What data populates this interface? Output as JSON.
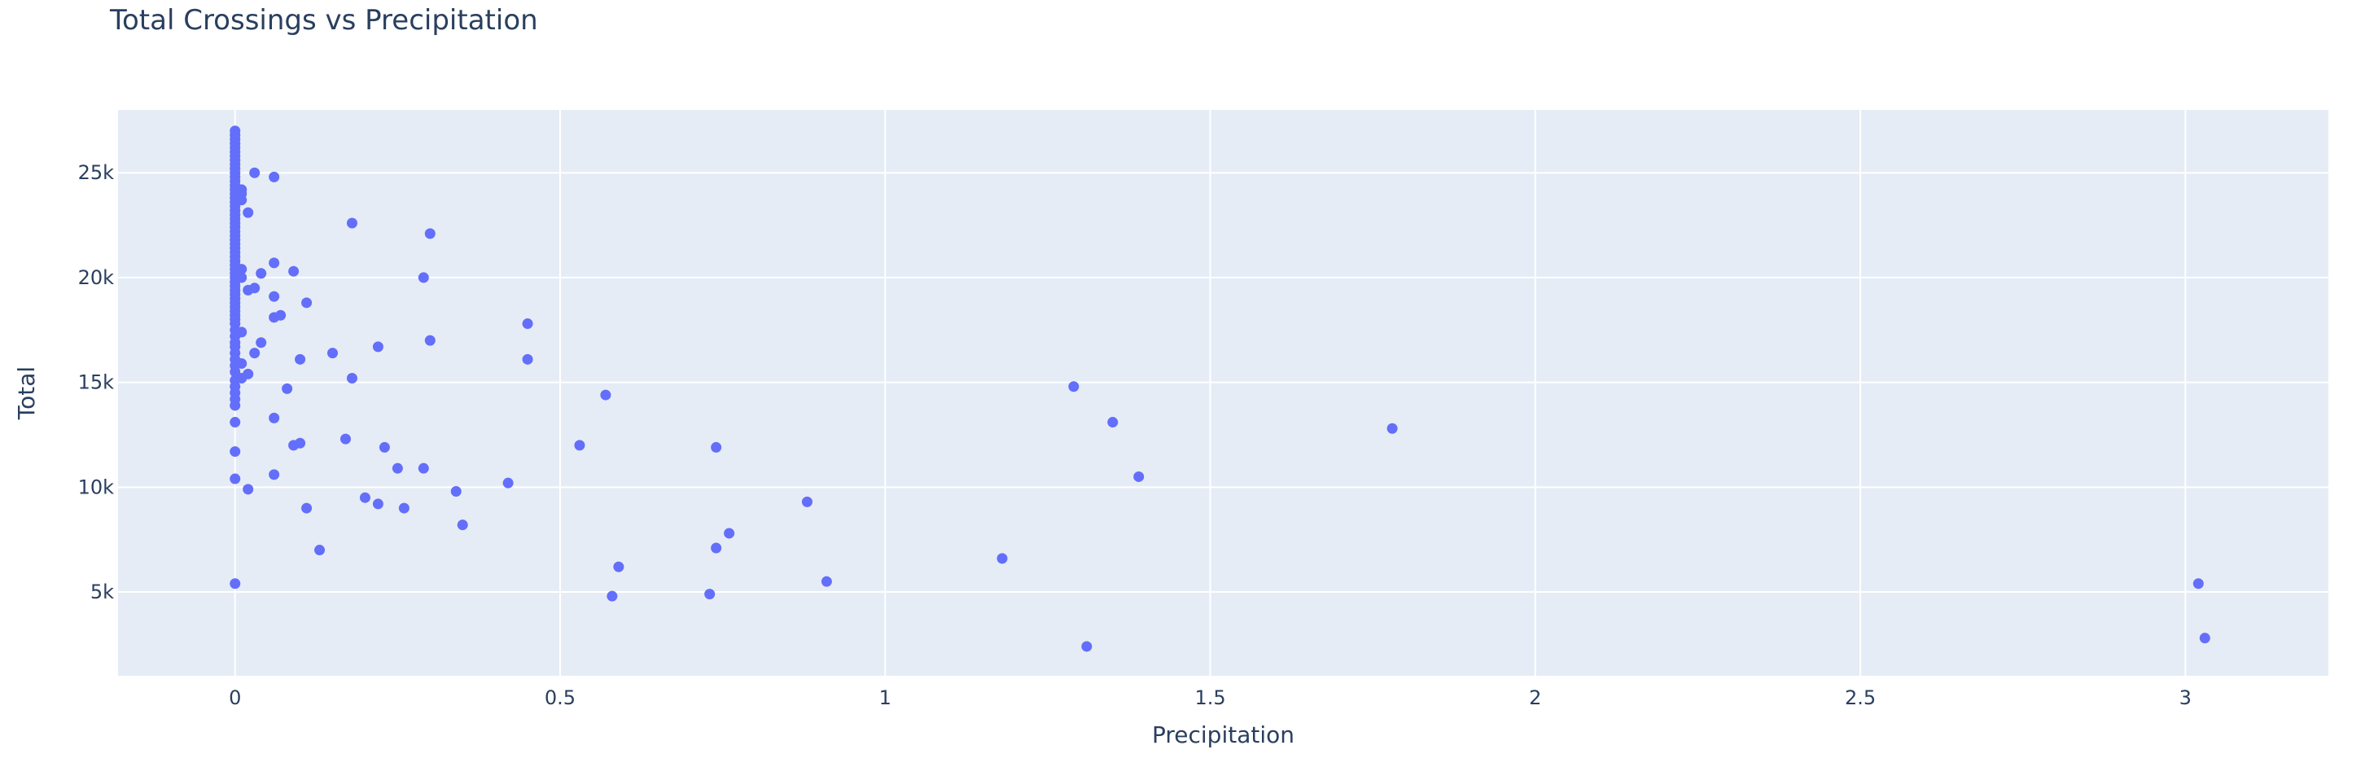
{
  "chart_data": {
    "type": "scatter",
    "title": "Total Crossings vs Precipitation",
    "xlabel": "Precipitation",
    "ylabel": "Total",
    "xlim": [
      -0.18,
      3.22
    ],
    "ylim": [
      1000,
      28000
    ],
    "x_ticks": [
      0,
      0.5,
      1,
      1.5,
      2,
      2.5,
      3
    ],
    "x_tick_labels": [
      "0",
      "0.5",
      "1",
      "1.5",
      "2",
      "2.5",
      "3"
    ],
    "y_ticks": [
      5000,
      10000,
      15000,
      20000,
      25000
    ],
    "y_tick_labels": [
      "5k",
      "10k",
      "15k",
      "20k",
      "25k"
    ],
    "grid": true,
    "colors": {
      "marker": "#636efa",
      "plot_bg": "#e5ecf6",
      "grid": "#ffffff",
      "text": "#2a3f5f"
    },
    "points": [
      [
        0,
        27000
      ],
      [
        0,
        26800
      ],
      [
        0,
        26600
      ],
      [
        0,
        26400
      ],
      [
        0,
        26200
      ],
      [
        0,
        26000
      ],
      [
        0,
        25800
      ],
      [
        0,
        25600
      ],
      [
        0,
        25400
      ],
      [
        0,
        25200
      ],
      [
        0,
        25000
      ],
      [
        0,
        24800
      ],
      [
        0,
        24600
      ],
      [
        0,
        24400
      ],
      [
        0,
        24200
      ],
      [
        0,
        24000
      ],
      [
        0,
        23800
      ],
      [
        0,
        23600
      ],
      [
        0,
        23400
      ],
      [
        0,
        23200
      ],
      [
        0,
        23000
      ],
      [
        0,
        22800
      ],
      [
        0,
        22600
      ],
      [
        0,
        22400
      ],
      [
        0,
        22200
      ],
      [
        0,
        22000
      ],
      [
        0,
        21800
      ],
      [
        0,
        21600
      ],
      [
        0,
        21400
      ],
      [
        0,
        21200
      ],
      [
        0,
        21000
      ],
      [
        0,
        20800
      ],
      [
        0,
        20600
      ],
      [
        0,
        20400
      ],
      [
        0,
        20200
      ],
      [
        0,
        20000
      ],
      [
        0,
        19800
      ],
      [
        0,
        19600
      ],
      [
        0,
        19400
      ],
      [
        0,
        19200
      ],
      [
        0,
        19000
      ],
      [
        0,
        18800
      ],
      [
        0,
        18600
      ],
      [
        0,
        18400
      ],
      [
        0,
        18200
      ],
      [
        0,
        18000
      ],
      [
        0,
        17800
      ],
      [
        0,
        17500
      ],
      [
        0,
        17200
      ],
      [
        0,
        16900
      ],
      [
        0,
        16700
      ],
      [
        0,
        16400
      ],
      [
        0,
        16100
      ],
      [
        0,
        15800
      ],
      [
        0,
        15500
      ],
      [
        0,
        15100
      ],
      [
        0,
        14800
      ],
      [
        0,
        14500
      ],
      [
        0,
        14200
      ],
      [
        0,
        13900
      ],
      [
        0,
        13100
      ],
      [
        0,
        11700
      ],
      [
        0,
        10400
      ],
      [
        0,
        5400
      ],
      [
        0.01,
        24200
      ],
      [
        0.01,
        24000
      ],
      [
        0.01,
        23700
      ],
      [
        0.01,
        20400
      ],
      [
        0.01,
        20000
      ],
      [
        0.01,
        17400
      ],
      [
        0.01,
        15900
      ],
      [
        0.01,
        15200
      ],
      [
        0.02,
        23100
      ],
      [
        0.02,
        19400
      ],
      [
        0.02,
        15400
      ],
      [
        0.02,
        9900
      ],
      [
        0.03,
        25000
      ],
      [
        0.03,
        19500
      ],
      [
        0.03,
        16400
      ],
      [
        0.04,
        20200
      ],
      [
        0.04,
        16900
      ],
      [
        0.06,
        24800
      ],
      [
        0.06,
        20700
      ],
      [
        0.06,
        19100
      ],
      [
        0.06,
        18100
      ],
      [
        0.06,
        13300
      ],
      [
        0.06,
        10600
      ],
      [
        0.07,
        18200
      ],
      [
        0.08,
        14700
      ],
      [
        0.09,
        20300
      ],
      [
        0.09,
        12000
      ],
      [
        0.1,
        16100
      ],
      [
        0.1,
        12100
      ],
      [
        0.11,
        18800
      ],
      [
        0.11,
        9000
      ],
      [
        0.13,
        7000
      ],
      [
        0.15,
        16400
      ],
      [
        0.17,
        12300
      ],
      [
        0.18,
        22600
      ],
      [
        0.18,
        15200
      ],
      [
        0.2,
        9500
      ],
      [
        0.22,
        16700
      ],
      [
        0.22,
        9200
      ],
      [
        0.23,
        11900
      ],
      [
        0.25,
        10900
      ],
      [
        0.26,
        9000
      ],
      [
        0.29,
        20000
      ],
      [
        0.29,
        10900
      ],
      [
        0.3,
        22100
      ],
      [
        0.3,
        17000
      ],
      [
        0.34,
        9800
      ],
      [
        0.35,
        8200
      ],
      [
        0.42,
        10200
      ],
      [
        0.45,
        17800
      ],
      [
        0.45,
        16100
      ],
      [
        0.53,
        12000
      ],
      [
        0.57,
        14400
      ],
      [
        0.58,
        4800
      ],
      [
        0.59,
        6200
      ],
      [
        0.73,
        4900
      ],
      [
        0.74,
        11900
      ],
      [
        0.74,
        7100
      ],
      [
        0.76,
        7800
      ],
      [
        0.88,
        9300
      ],
      [
        0.91,
        5500
      ],
      [
        1.18,
        6600
      ],
      [
        1.29,
        14800
      ],
      [
        1.31,
        2400
      ],
      [
        1.35,
        13100
      ],
      [
        1.39,
        10500
      ],
      [
        1.78,
        12800
      ],
      [
        3.02,
        5400
      ],
      [
        3.03,
        2800
      ]
    ]
  }
}
